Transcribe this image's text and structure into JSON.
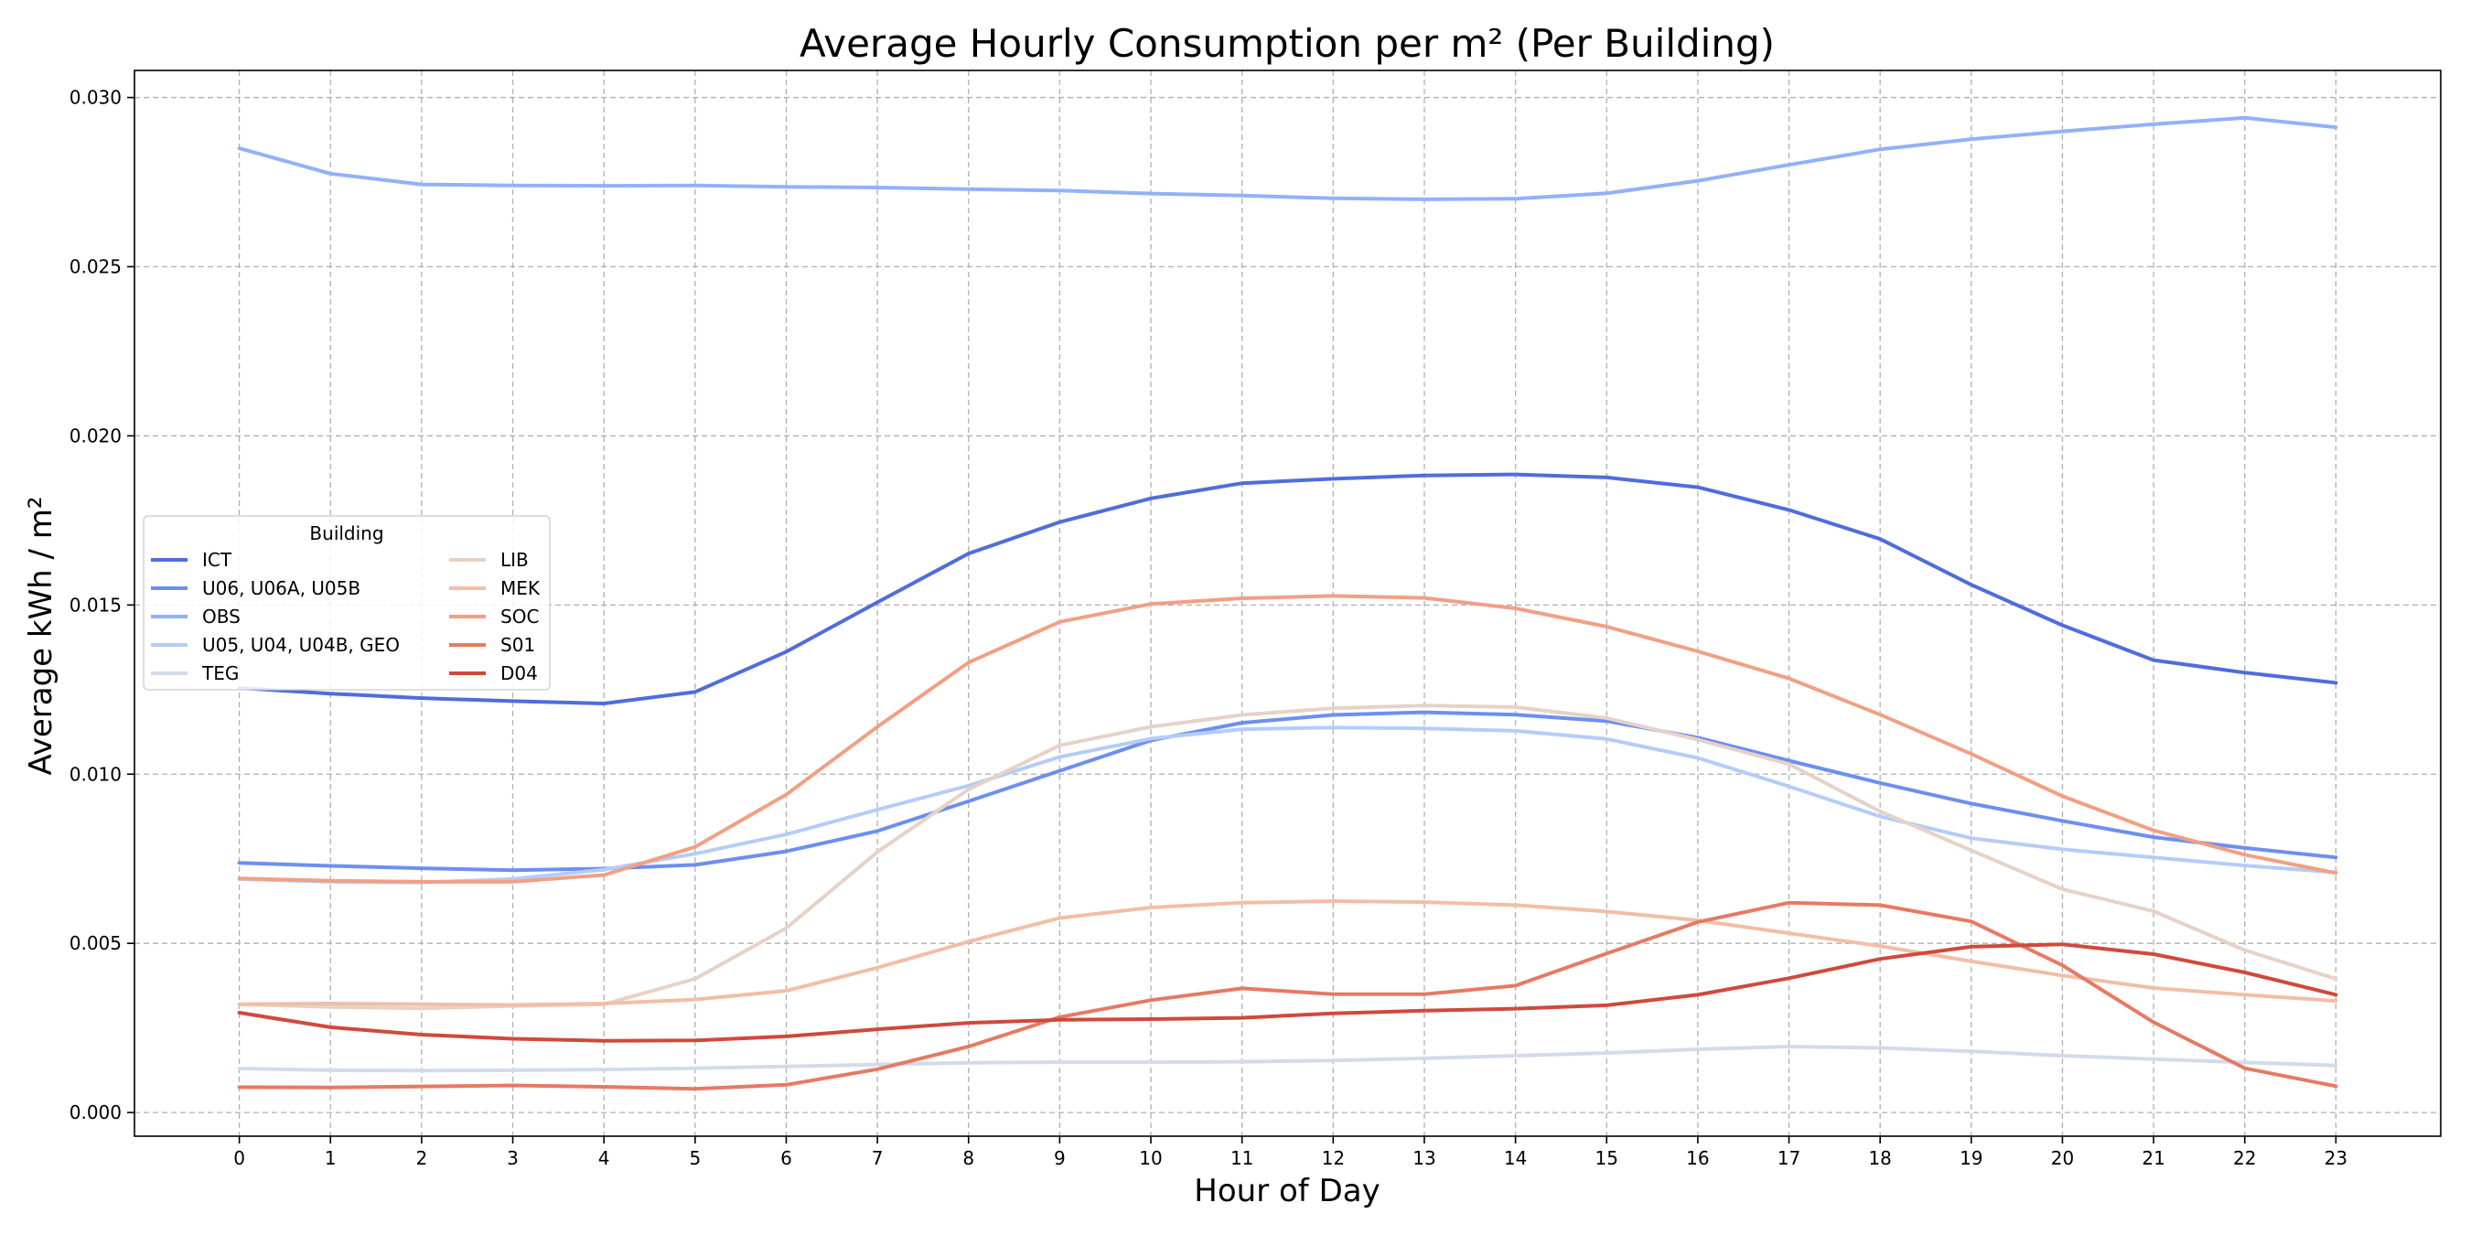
{
  "chart_data": {
    "type": "line",
    "title": "Average Hourly Consumption per m² (Per Building)",
    "xlabel": "Hour of Day",
    "ylabel": "Average kWh / m²",
    "x": [
      0,
      1,
      2,
      3,
      4,
      5,
      6,
      7,
      8,
      9,
      10,
      11,
      12,
      13,
      14,
      15,
      16,
      17,
      18,
      19,
      20,
      21,
      22,
      23
    ],
    "x_ticks": [
      "0",
      "1",
      "2",
      "3",
      "4",
      "5",
      "6",
      "7",
      "8",
      "9",
      "10",
      "11",
      "12",
      "13",
      "14",
      "15",
      "16",
      "17",
      "18",
      "19",
      "20",
      "21",
      "22",
      "23"
    ],
    "xlim": [
      -1.15,
      24.15
    ],
    "ylim": [
      -0.0007,
      0.0308
    ],
    "y_ticks": [
      0.0,
      0.005,
      0.01,
      0.015,
      0.02,
      0.025,
      0.03
    ],
    "y_tick_labels": [
      "0.000",
      "0.005",
      "0.010",
      "0.015",
      "0.020",
      "0.025",
      "0.030"
    ],
    "grid": true,
    "legend": {
      "title": "Building",
      "placement": "center-left",
      "columns": 2
    },
    "series": [
      {
        "name": "ICT",
        "color": "#4f6ddc",
        "values": [
          0.01255,
          0.01238,
          0.01225,
          0.01216,
          0.01209,
          0.01243,
          0.01362,
          0.01508,
          0.01652,
          0.01745,
          0.01815,
          0.0186,
          0.01873,
          0.01883,
          0.01886,
          0.01877,
          0.01848,
          0.01781,
          0.01695,
          0.0156,
          0.0144,
          0.01337,
          0.013,
          0.0127
        ]
      },
      {
        "name": "U06, U06A, U05B",
        "color": "#6c8ff0",
        "values": [
          0.00738,
          0.00729,
          0.00722,
          0.00716,
          0.00721,
          0.00732,
          0.00772,
          0.00832,
          0.0092,
          0.0101,
          0.011,
          0.01152,
          0.01175,
          0.01183,
          0.01176,
          0.01157,
          0.01108,
          0.0104,
          0.00974,
          0.00913,
          0.00862,
          0.00814,
          0.00782,
          0.00754
        ]
      },
      {
        "name": "OBS",
        "color": "#92b1fb",
        "values": [
          0.0285,
          0.02775,
          0.02743,
          0.0274,
          0.02739,
          0.0274,
          0.02736,
          0.02734,
          0.02729,
          0.02725,
          0.02716,
          0.0271,
          0.02702,
          0.02699,
          0.02701,
          0.02717,
          0.02754,
          0.02801,
          0.02847,
          0.02877,
          0.029,
          0.02921,
          0.0294,
          0.02912
        ]
      },
      {
        "name": "U05, U04, U04B, GEO",
        "color": "#b5ccf9",
        "values": [
          0.0069,
          0.00682,
          0.0068,
          0.0069,
          0.00718,
          0.00765,
          0.00822,
          0.00895,
          0.00966,
          0.01051,
          0.01105,
          0.01133,
          0.01138,
          0.01135,
          0.01128,
          0.01104,
          0.01048,
          0.00964,
          0.00875,
          0.00811,
          0.00778,
          0.00754,
          0.0073,
          0.0071
        ]
      },
      {
        "name": "TEG",
        "color": "#d3daea",
        "values": [
          0.0013,
          0.00125,
          0.00124,
          0.00125,
          0.00127,
          0.00131,
          0.00136,
          0.00142,
          0.00147,
          0.00149,
          0.00149,
          0.0015,
          0.00154,
          0.0016,
          0.00168,
          0.00176,
          0.00187,
          0.00195,
          0.00191,
          0.00181,
          0.00168,
          0.00158,
          0.00148,
          0.00139
        ]
      },
      {
        "name": "LIB",
        "color": "#e6d2c7",
        "values": [
          0.0032,
          0.00312,
          0.00308,
          0.00315,
          0.0032,
          0.00395,
          0.00545,
          0.0077,
          0.00955,
          0.01085,
          0.0114,
          0.01175,
          0.01195,
          0.01203,
          0.01198,
          0.01166,
          0.01102,
          0.0103,
          0.0089,
          0.00775,
          0.0066,
          0.00595,
          0.0048,
          0.00395
        ]
      },
      {
        "name": "MEK",
        "color": "#f2bea6",
        "values": [
          0.0032,
          0.00322,
          0.0032,
          0.00318,
          0.00322,
          0.00334,
          0.0036,
          0.00428,
          0.00505,
          0.00575,
          0.00606,
          0.0062,
          0.00625,
          0.00622,
          0.00613,
          0.00594,
          0.00568,
          0.0053,
          0.00492,
          0.00447,
          0.00405,
          0.00368,
          0.00348,
          0.0033
        ]
      },
      {
        "name": "SOC",
        "color": "#f29f84",
        "values": [
          0.00692,
          0.00685,
          0.00682,
          0.00682,
          0.00702,
          0.00785,
          0.0094,
          0.0114,
          0.0133,
          0.0145,
          0.01503,
          0.0152,
          0.01527,
          0.01521,
          0.0149,
          0.01436,
          0.01363,
          0.01283,
          0.01176,
          0.0106,
          0.00935,
          0.00834,
          0.00762,
          0.00708
        ]
      },
      {
        "name": "S01",
        "color": "#e57a64",
        "values": [
          0.00075,
          0.00074,
          0.00077,
          0.0008,
          0.00076,
          0.0007,
          0.00082,
          0.00128,
          0.00195,
          0.00282,
          0.00332,
          0.00367,
          0.0035,
          0.0035,
          0.00375,
          0.0047,
          0.00563,
          0.0062,
          0.00613,
          0.00565,
          0.00435,
          0.00267,
          0.00131,
          0.00078
        ]
      },
      {
        "name": "D04",
        "color": "#cf4a3c",
        "values": [
          0.00295,
          0.00252,
          0.0023,
          0.00218,
          0.00212,
          0.00213,
          0.00225,
          0.00246,
          0.00265,
          0.00274,
          0.00276,
          0.0028,
          0.00293,
          0.00301,
          0.00307,
          0.00317,
          0.00348,
          0.00397,
          0.00454,
          0.0049,
          0.00497,
          0.00468,
          0.00414,
          0.00348
        ]
      }
    ]
  }
}
